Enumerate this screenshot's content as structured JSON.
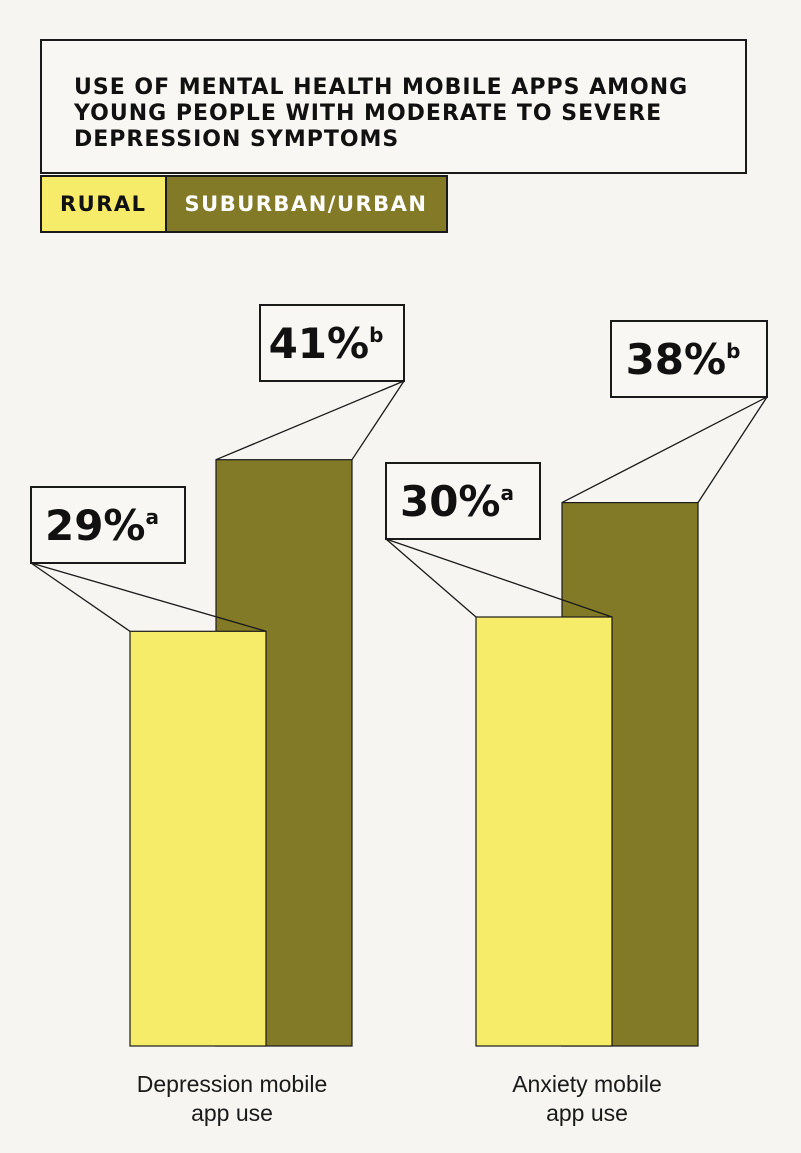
{
  "chart_data": {
    "type": "bar",
    "title": "USE OF MENTAL HEALTH MOBILE APPS AMONG YOUNG PEOPLE WITH MODERATE TO SEVERE DEPRESSION SYMPTOMS",
    "categories": [
      [
        "Depression mobile",
        "app use"
      ],
      [
        "Anxiety mobile",
        "app use"
      ]
    ],
    "series": [
      {
        "name": "RURAL",
        "color": "#f7ec6a",
        "values": [
          29,
          30
        ],
        "labels": [
          "29%",
          "30%"
        ],
        "superscripts": [
          "a",
          "a"
        ]
      },
      {
        "name": "SUBURBAN/URBAN",
        "color": "#827a27",
        "values": [
          41,
          38
        ],
        "labels": [
          "41%",
          "38%"
        ],
        "superscripts": [
          "b",
          "b"
        ]
      }
    ],
    "ylim": [
      0,
      100
    ],
    "legend_position": "top-left",
    "grid": false
  }
}
